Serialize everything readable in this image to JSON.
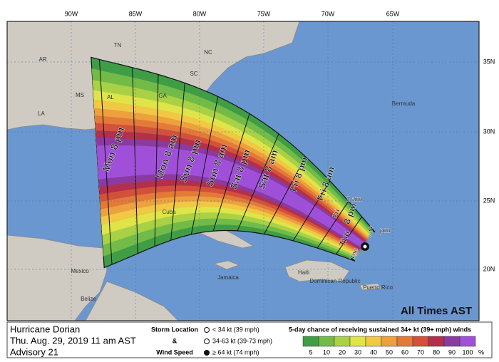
{
  "lon_labels": [
    "90W",
    "85W",
    "80W",
    "75W",
    "70W",
    "65W"
  ],
  "lat_labels": [
    "35N",
    "30N",
    "25N",
    "20N"
  ],
  "places": [
    "AR",
    "TN",
    "NC",
    "MS",
    "AL",
    "GA",
    "SC",
    "LA",
    "Bermuda",
    "Cuba",
    "Mexico",
    "Jamaica",
    "Haiti",
    "Dominican Republic",
    "Puerto Rico",
    "Belize"
  ],
  "timeline_labels": [
    "Mon 8 pm",
    "Mon 8 am",
    "Sun 8 pm",
    "Sun 8 am",
    "Sat 8 pm",
    "Sat 8 am",
    "Fri 8 pm",
    "Fri 8 am",
    "Fri",
    "2 am",
    "Thu",
    "8 pm",
    "2",
    "pm",
    "Thu"
  ],
  "times_note": "All Times AST",
  "legend": {
    "storm": "Hurricane Dorian",
    "date": "Thu. Aug. 29, 2019  11 am AST",
    "advisory": "Advisory 21",
    "symbol_title": [
      "Storm Location",
      "&",
      "Wind Speed"
    ],
    "symbols": [
      "< 34 kt (39 mph)",
      "34-63 kt (39-73 mph)",
      "≥ 64 kt (74 mph)"
    ],
    "scale_title": "5-day chance of receiving sustained 34+ kt (39+ mph) winds",
    "scale": [
      {
        "label": "5",
        "color": "#3f9e45"
      },
      {
        "label": "10",
        "color": "#72bb48"
      },
      {
        "label": "20",
        "color": "#a9d146"
      },
      {
        "label": "30",
        "color": "#dfe449"
      },
      {
        "label": "40",
        "color": "#f0c843"
      },
      {
        "label": "50",
        "color": "#eca13e"
      },
      {
        "label": "60",
        "color": "#e37a39"
      },
      {
        "label": "70",
        "color": "#d3513b"
      },
      {
        "label": "80",
        "color": "#b2304c"
      },
      {
        "label": "90",
        "color": "#8b3aa0"
      },
      {
        "label": "100",
        "color": "#a050d8"
      }
    ],
    "scale_unit": "%"
  }
}
